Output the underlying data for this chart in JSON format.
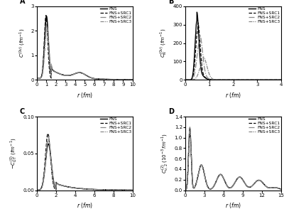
{
  "panel_labels": [
    "A",
    "B",
    "C",
    "D"
  ],
  "legend_labels": [
    "FNS",
    "FNS+SRC1",
    "FNS+SRC2",
    "FNS+SRC3"
  ],
  "panel_A": {
    "ylabel": "$C^{(0\\nu)}$ $(fm^{-1})$",
    "xlabel": "$r$ $(fm)$",
    "xlim": [
      0,
      10
    ],
    "ylim": [
      0,
      3.0
    ],
    "yticks": [
      0.0,
      1.0,
      2.0,
      3.0
    ]
  },
  "panel_B": {
    "ylabel": "$C_N^{(0\\nu)}$ $(fm^{-1})$",
    "xlabel": "$r$ $(fm)$",
    "xlim": [
      0,
      4
    ],
    "ylim": [
      0,
      400.0
    ],
    "yticks": [
      0.0,
      100.0,
      200.0,
      300.0,
      400.0
    ]
  },
  "panel_C": {
    "ylabel": "$-C^{(0)}_{GT}$ $(fm^{-1})$",
    "xlabel": "$r$ $(fm)$",
    "xlim": [
      0,
      10
    ],
    "ylim": [
      0,
      0.1
    ],
    "yticks": [
      0.0,
      0.05,
      0.1
    ]
  },
  "panel_D": {
    "ylabel": "$C^{(2)}_{\\nu,2}$ $(10^{-3}$ $fm^{-1})$",
    "xlabel": "$r$ $(fm)$",
    "xlim": [
      0,
      15
    ],
    "ylim": [
      0,
      1.4
    ],
    "yticks": [
      0.0,
      0.2,
      0.4,
      0.6,
      0.8,
      1.0,
      1.2,
      1.4
    ]
  }
}
